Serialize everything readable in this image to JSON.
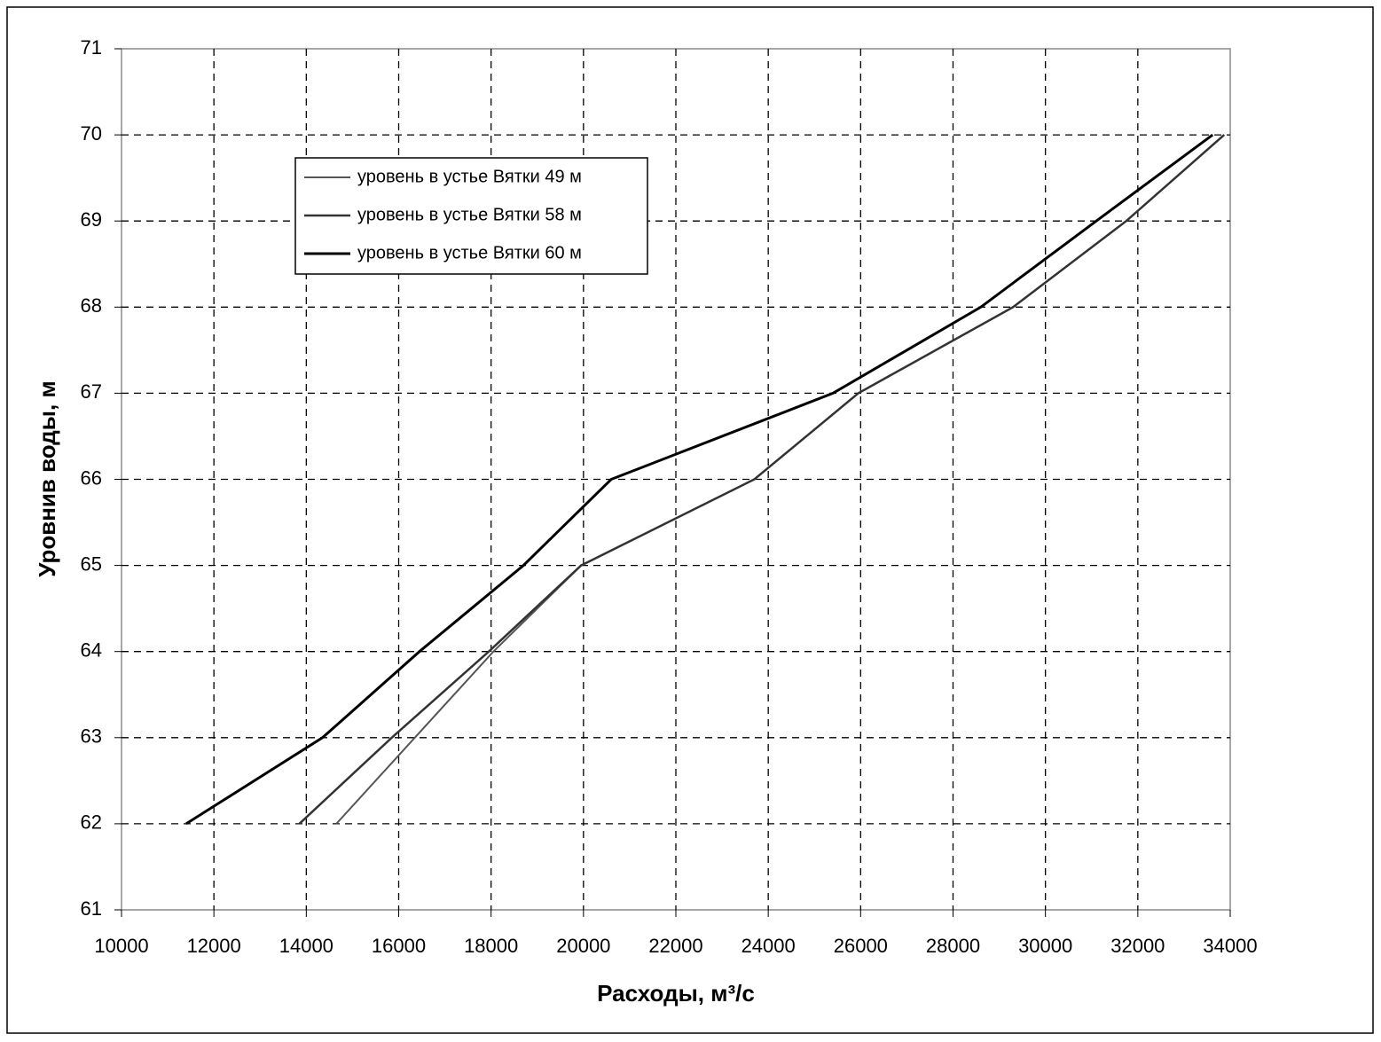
{
  "chart_data": {
    "type": "line",
    "xlabel": "Расходы, м³/с",
    "ylabel": "Уровнив воды, м",
    "xlim": [
      10000,
      34000
    ],
    "xticks": [
      10000,
      12000,
      14000,
      16000,
      18000,
      20000,
      22000,
      24000,
      26000,
      28000,
      30000,
      32000,
      34000
    ],
    "ylim": [
      61,
      71
    ],
    "yticks": [
      61,
      62,
      63,
      64,
      65,
      66,
      67,
      68,
      69,
      70,
      71
    ],
    "grid": true,
    "legend": "upper left",
    "series": [
      {
        "name": "уровень в устье Вятки 49 м",
        "color": "#555555",
        "x": [
          14650,
          16350,
          18050,
          19950,
          23700,
          25950,
          29300,
          31750,
          33870
        ],
        "values": [
          62,
          63,
          64,
          65,
          66,
          67,
          68,
          69,
          70
        ]
      },
      {
        "name": "уровень в устье Вятки 58 м",
        "color": "#333333",
        "x": [
          13850,
          15850,
          17950,
          19950,
          23700,
          25950,
          29300,
          31750,
          33870
        ],
        "values": [
          62,
          63,
          64,
          65,
          66,
          67,
          68,
          69,
          70
        ]
      },
      {
        "name": "уровень в устье Вятки 60 м",
        "color": "#000000",
        "x": [
          11400,
          14350,
          16450,
          18700,
          20600,
          25400,
          28600,
          31100,
          33620
        ],
        "values": [
          62,
          63,
          64,
          65,
          66,
          67,
          68,
          69,
          70
        ]
      }
    ]
  }
}
